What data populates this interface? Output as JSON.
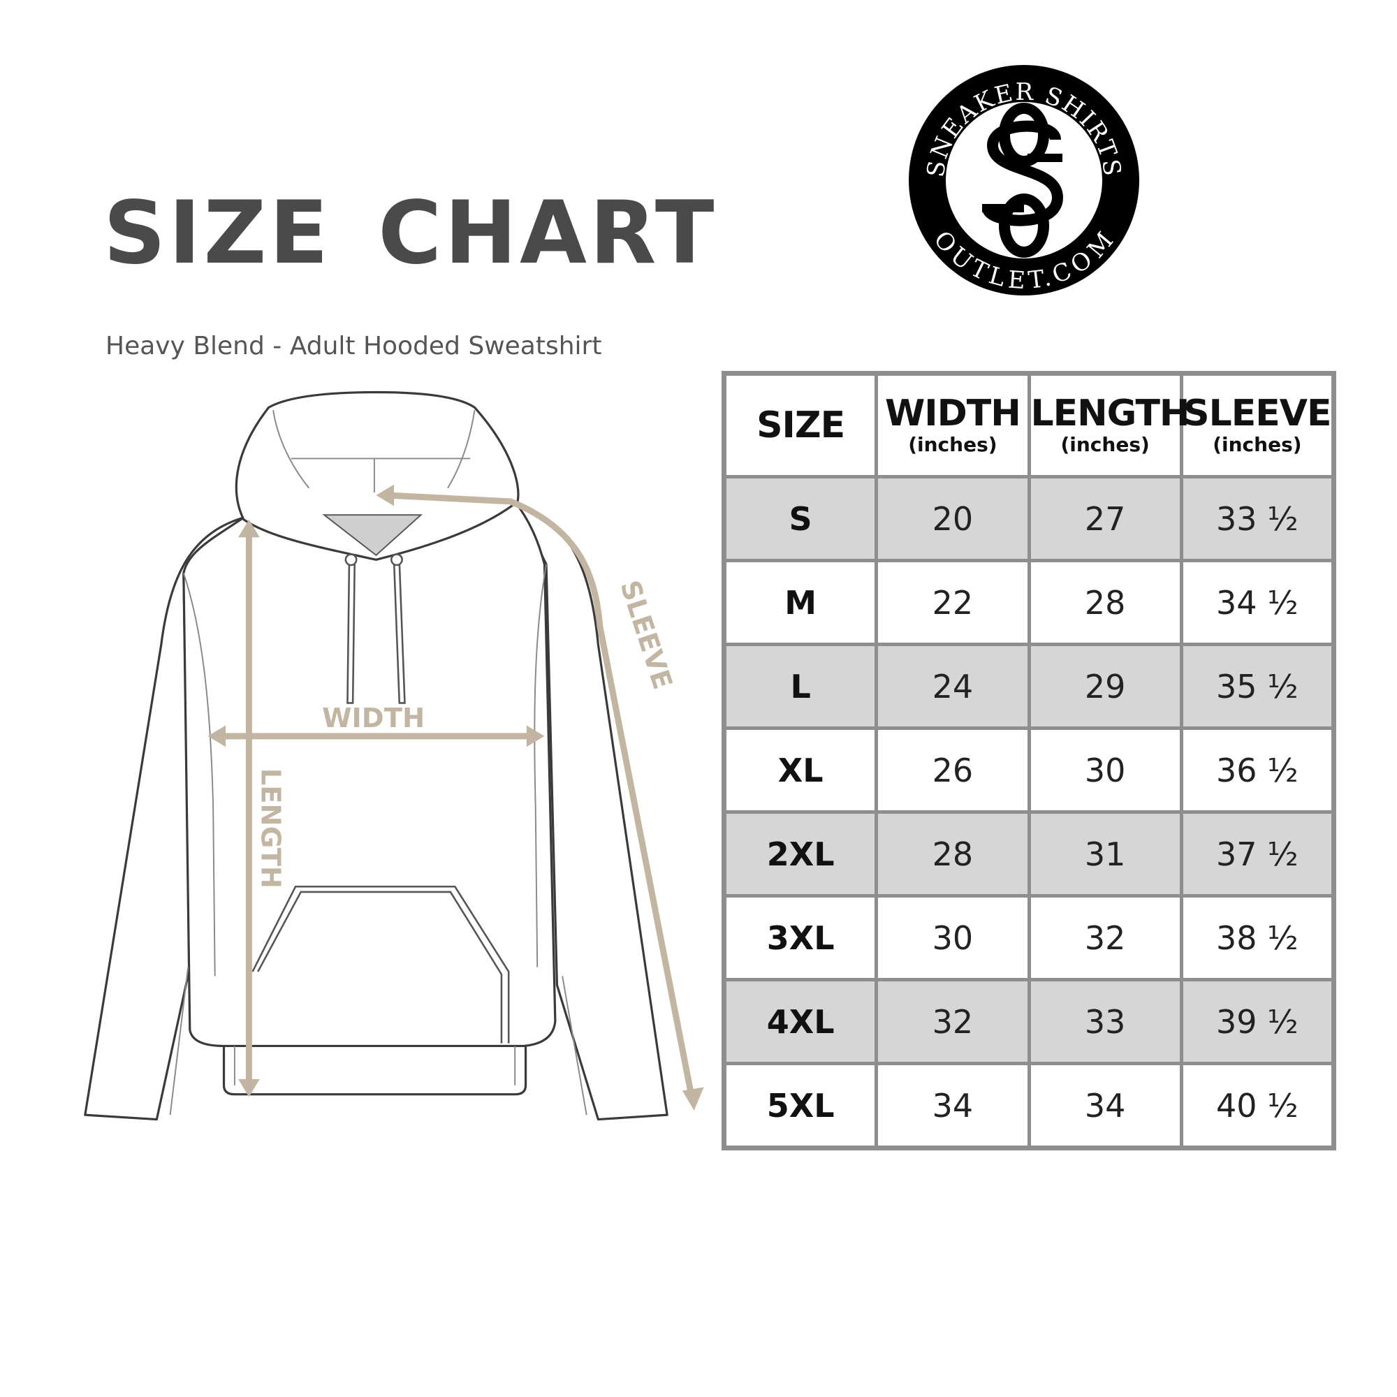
{
  "title": "SIZE CHART",
  "subtitle": "Heavy Blend - Adult Hooded Sweatshirt",
  "logo": {
    "top_text": "SNEAKER SHIRTS",
    "bottom_text": "OUTLET.COM",
    "monogram": "SS"
  },
  "diagram": {
    "width_label": "WIDTH",
    "length_label": "LENGTH",
    "sleeve_label": "SLEEVE",
    "arrow_color": "#c2b6a2"
  },
  "table": {
    "headers": [
      {
        "label": "SIZE",
        "unit": ""
      },
      {
        "label": "WIDTH",
        "unit": "(inches)"
      },
      {
        "label": "LENGTH",
        "unit": "(inches)"
      },
      {
        "label": "SLEEVE",
        "unit": "(inches)"
      }
    ],
    "rows": [
      [
        "S",
        "20",
        "27",
        "33 ½"
      ],
      [
        "M",
        "22",
        "28",
        "34 ½"
      ],
      [
        "L",
        "24",
        "29",
        "35 ½"
      ],
      [
        "XL",
        "26",
        "30",
        "36 ½"
      ],
      [
        "2XL",
        "28",
        "31",
        "37 ½"
      ],
      [
        "3XL",
        "30",
        "32",
        "38 ½"
      ],
      [
        "4XL",
        "32",
        "33",
        "39 ½"
      ],
      [
        "5XL",
        "34",
        "34",
        "40 ½"
      ]
    ]
  }
}
